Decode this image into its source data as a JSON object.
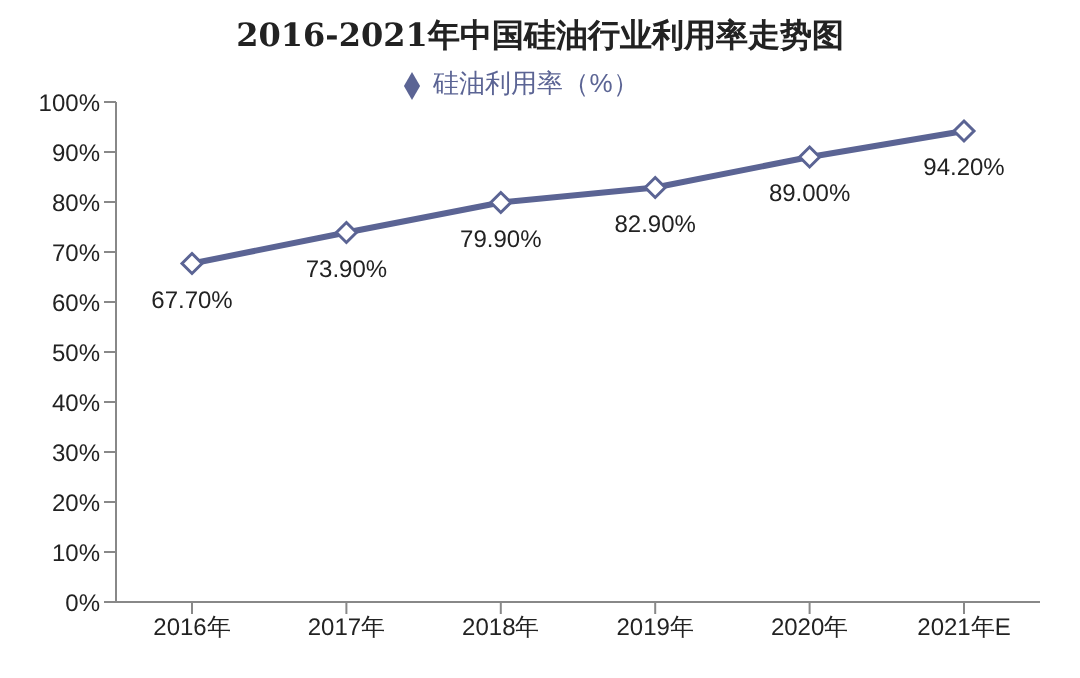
{
  "chart_data": {
    "type": "line",
    "title": "2016-2021年中国硅油行业利用率走势图",
    "categories": [
      "2016年",
      "2017年",
      "2018年",
      "2019年",
      "2020年",
      "2021年E"
    ],
    "series": [
      {
        "name": "硅油利用率（%）",
        "color": "#5b6494",
        "values": [
          67.7,
          73.9,
          79.9,
          82.9,
          89.0,
          94.2
        ],
        "value_labels": [
          "67.70%",
          "73.90%",
          "79.90%",
          "82.90%",
          "89.00%",
          "94.20%"
        ]
      }
    ],
    "ylim": [
      0,
      100
    ],
    "yticks": [
      {
        "value": 0,
        "label": "0%"
      },
      {
        "value": 10,
        "label": "10%"
      },
      {
        "value": 20,
        "label": "20%"
      },
      {
        "value": 30,
        "label": "30%"
      },
      {
        "value": 40,
        "label": "40%"
      },
      {
        "value": 50,
        "label": "50%"
      },
      {
        "value": 60,
        "label": "60%"
      },
      {
        "value": 70,
        "label": "70%"
      },
      {
        "value": 80,
        "label": "80%"
      },
      {
        "value": 90,
        "label": "90%"
      },
      {
        "value": 100,
        "label": "100%"
      }
    ],
    "grid": false,
    "legend": "top",
    "marker": "diamond",
    "line_style": "solid"
  }
}
